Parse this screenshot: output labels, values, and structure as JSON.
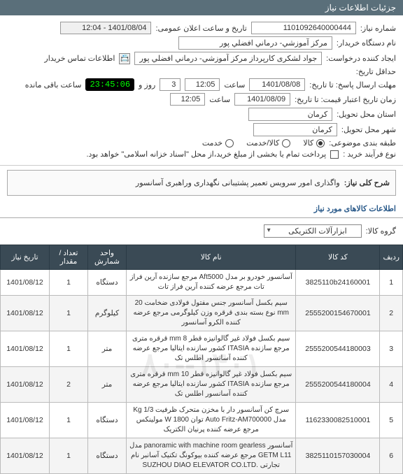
{
  "header": {
    "title": "جزئیات اطلاعات نیاز"
  },
  "info": {
    "need_no_label": "شماره نیاز:",
    "need_no": "1101092640000444",
    "announce_label": "تاریخ و ساعت اعلان عمومی:",
    "announce_value": "1401/08/04 - 12:04",
    "buyer_label": "نام دستگاه خریدار:",
    "buyer": "مرکز آموزشي- درماني افضلي پور",
    "requester_label": "ایجاد کننده درخواست:",
    "requester": "جواد  لشکری  کارپرداز مرکز آموزشي- درماني افضلي پور",
    "contact_icon_label": "اطلاعات تماس خریدار",
    "deadline_label": "حداقل تاریخ:",
    "reply_deadline_label": "مهلت ارسال پاسخ: تا تاریخ:",
    "reply_date": "1401/08/08",
    "time_label": "ساعت",
    "reply_time": "12:05",
    "days_remaining": "3",
    "days_label": "روز و",
    "countdown": "23:45:06",
    "remaining_label": "ساعت باقی مانده",
    "validity_label": "زمان تاریخ اعتبار قیمت: تا تاریخ:",
    "validity_date": "1401/08/09",
    "validity_time": "12:05",
    "province_label": "استان محل تحویل:",
    "province": "کرمان",
    "city_label": "شهر محل تحویل:",
    "city": "کرمان",
    "category_label": "طبقه بندی موضوعی:",
    "cat_goods": "کالا",
    "cat_service": "کالا/خدمت",
    "cat_other": "خدمت",
    "buy_type_label": "نوع فرآیند خرید :",
    "buy_type_note": "پرداخت تمام یا بخشی از مبلغ خرید،از محل \"اسناد خزانه اسلامی\" خواهد بود.",
    "desc_label": "شرح کلی نیاز:",
    "desc": "واگذاری امور سرویس تعمیر پشتیبانی نگهداری وراهبری آسانسور"
  },
  "items_section": {
    "title": "اطلاعات کالاهای مورد نیاز",
    "group_label": "گروه کالا:",
    "group_value": "ابزارآلات الکتریکی"
  },
  "table": {
    "headers": {
      "idx": "ردیف",
      "code": "کد کالا",
      "name": "نام کالا",
      "unit": "واحد شمارش",
      "qty": "تعداد / مقدار",
      "date": "تاریخ نیاز"
    },
    "rows": [
      {
        "idx": "1",
        "code": "3825110b24160001",
        "name": "آسانسور خودرو بر مدل Aft5000 مرجع سازنده آرین فراز تات مرجع عرضه کننده آرین فراز تات",
        "unit": "دستگاه",
        "qty": "1",
        "date": "1401/08/12"
      },
      {
        "idx": "2",
        "code": "2555200154670001",
        "name": "سیم بکسل آسانسور جنس مفتول فولادی ضخامت 20 mm نوع بسته بندی قرقره وزن کیلوگرمی مرجع عرضه کننده الکرو آسانسور",
        "unit": "کیلوگرم",
        "qty": "1",
        "date": "1401/08/12"
      },
      {
        "idx": "3",
        "code": "2555200544180003",
        "name": "سیم بکسل فولاد غیر گالوانیزه قطر 8 mm قرقره متری مرجع سازنده ITASIA کشور سازنده ایتالیا مرجع عرضه کننده آسانسور اطلس تک",
        "unit": "متر",
        "qty": "1",
        "date": "1401/08/12"
      },
      {
        "idx": "4",
        "code": "2555200544180004",
        "name": "سیم بکسل فولاد غیر گالوانیزه قطر 10 mm قرقره متری مرجع سازنده ITASIA کشور سازنده ایتالیا مرجع عرضه کننده آسانسور اطلس تک",
        "unit": "متر",
        "qty": "2",
        "date": "1401/08/12"
      },
      {
        "idx": "5",
        "code": "1162330082510001",
        "name": "سرچ کن آسانسور دار با مخزن متحرک ظرفیت 1/3 Kg مدل Auto Fritz-AM700000 توان W 1800 مولینکس مرجع عرضه کننده پرنیان الکتریک",
        "unit": "دستگاه",
        "qty": "1",
        "date": "1401/08/12"
      },
      {
        "idx": "6",
        "code": "3825110157030004",
        "name": "آسانسور panoramic with machine room gearless مدل GETM L11 مرجع عرضه کننده بیوکونگ تکنیک آسانبر نام تجارتی .SUZHOU DIAO ELEVATOR CO.LTD",
        "unit": "دستگاه",
        "qty": "1",
        "date": "1401/08/12"
      }
    ]
  },
  "watermark": "۱۴۰۱--۸۰"
}
